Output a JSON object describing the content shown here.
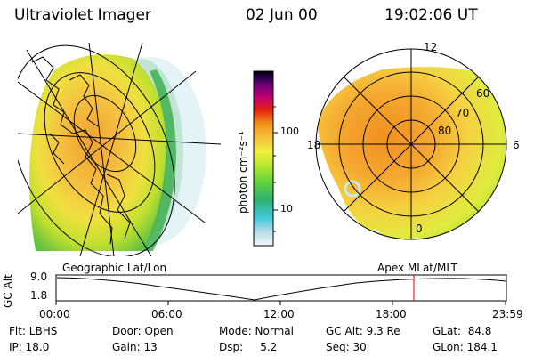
{
  "header": {
    "instrument": "Ultraviolet Imager",
    "date": "02 Jun 00",
    "time": "19:02:06 UT"
  },
  "colorbar": {
    "label": "photon cm⁻²s⁻¹",
    "ticks": [
      {
        "value": 100,
        "label": "100"
      },
      {
        "value": 10,
        "label": "10"
      }
    ],
    "scale": "log",
    "colors": [
      "#e8f4f8",
      "#b6dce8",
      "#40c8d8",
      "#30b070",
      "#60d040",
      "#b8e830",
      "#f0f040",
      "#f8c040",
      "#f09018",
      "#e02010",
      "#c00070",
      "#700078",
      "#200040",
      "#000000"
    ]
  },
  "left_panel": {
    "caption": "Geographic Lat/Lon"
  },
  "right_panel": {
    "caption": "Apex MLat/MLT",
    "mlt_labels": [
      "12",
      "18",
      "6",
      "0"
    ],
    "mlat_labels": [
      "60",
      "70",
      "80"
    ]
  },
  "timeline": {
    "ylabel": "GC Alt",
    "yticks": [
      "9.0",
      "1.8"
    ],
    "xticks": [
      "00:00",
      "06:00",
      "12:00",
      "18:00",
      "23:59"
    ],
    "marker_time": "19:02",
    "marker_color": "#e00000"
  },
  "info": {
    "row1": {
      "filter": "Flt: LBHS",
      "door": "Door: Open",
      "mode": "Mode: Normal",
      "gc_alt": "GC Alt: 9.3 Re",
      "glat": "GLat:  84.8"
    },
    "row2": {
      "ip": "IP: 18.0",
      "gain": "Gain: 13",
      "dsp": "Dsp:     5.2",
      "seq": "Seq: 30",
      "glon": "GLon: 184.1"
    }
  }
}
